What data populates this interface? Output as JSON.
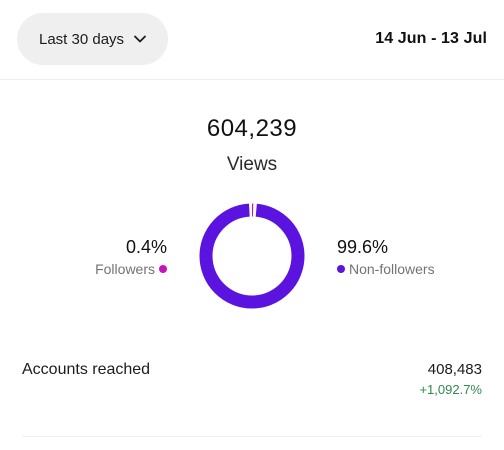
{
  "header": {
    "range_selector": "Last 30 days",
    "date_range": "14 Jun - 13 Jul"
  },
  "views": {
    "total": "604,239",
    "label": "Views"
  },
  "breakdown": {
    "followers": {
      "percent_label": "0.4%",
      "percent": 0.4,
      "label": "Followers",
      "color": "#c913b9"
    },
    "non_followers": {
      "percent_label": "99.6%",
      "percent": 99.6,
      "label": "Non-followers",
      "color": "#5b14e0"
    }
  },
  "accounts_reached": {
    "label": "Accounts reached",
    "value": "408,483",
    "change": "+1,092.7%",
    "change_color": "#2f8a4e"
  },
  "icons": {
    "range_chevron": "chevron-down-icon"
  }
}
